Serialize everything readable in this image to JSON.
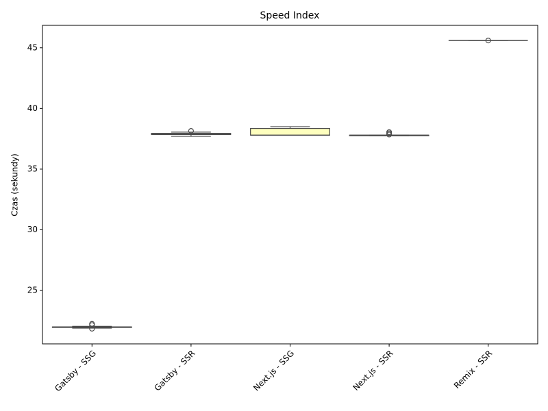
{
  "chart_data": {
    "type": "box",
    "title": "Speed Index",
    "y_label": "Czas (sekundy)",
    "categories": [
      "Gatsby - SSG",
      "Gatsby - SSR",
      "Next.js - SSG",
      "Next.js - SSR",
      "Remix - SSR"
    ],
    "boxes": [
      {
        "whislo": 21.9,
        "q1": 21.95,
        "med": 22.0,
        "q3": 22.0,
        "whishi": 22.05,
        "fliers": [
          22.25,
          22.15,
          21.85
        ],
        "color": "#e95c47"
      },
      {
        "whislo": 37.7,
        "q1": 37.85,
        "med": 37.9,
        "q3": 37.95,
        "whishi": 38.05,
        "fliers": [
          38.15
        ],
        "color": "#fdbf6f"
      },
      {
        "whislo": 37.8,
        "q1": 37.8,
        "med": 37.8,
        "q3": 38.35,
        "whishi": 38.5,
        "fliers": [],
        "color": "#feffbe"
      },
      {
        "whislo": 37.75,
        "q1": 37.75,
        "med": 37.8,
        "q3": 37.8,
        "whishi": 37.8,
        "fliers": [
          38.05,
          37.95,
          37.85
        ],
        "color": "#bfe5a0"
      },
      {
        "whislo": 45.6,
        "q1": 45.6,
        "med": 45.6,
        "q3": 45.6,
        "whishi": 45.6,
        "fliers": [
          45.6
        ],
        "color": "#54aead"
      }
    ],
    "ylim": [
      20.6,
      46.85
    ],
    "yticks": [
      25,
      30,
      35,
      40,
      45
    ]
  }
}
